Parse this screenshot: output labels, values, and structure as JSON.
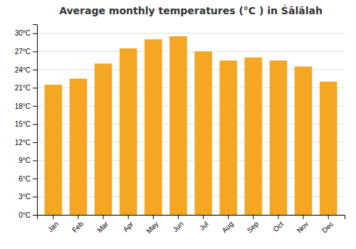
{
  "chart_data": {
    "type": "bar",
    "title": "Average monthly temperatures (°C ) in Śālālah",
    "categories": [
      "Jan",
      "Feb",
      "Mar",
      "Apr",
      "May",
      "Jun",
      "Jul",
      "Aug",
      "Sep",
      "Oct",
      "Nov",
      "Dec"
    ],
    "values": [
      21.5,
      22.5,
      25.0,
      27.5,
      29.0,
      29.5,
      27.0,
      25.5,
      26.0,
      25.5,
      24.5,
      22.0
    ],
    "color": "#F5A623",
    "ylim": [
      0,
      31.5
    ],
    "yticks": [
      {
        "value": 0,
        "label": "0°C"
      },
      {
        "value": 3,
        "label": "3°C"
      },
      {
        "value": 6,
        "label": "6°C"
      },
      {
        "value": 9,
        "label": "9°C"
      },
      {
        "value": 12,
        "label": "12°C"
      },
      {
        "value": 15,
        "label": "15°C"
      },
      {
        "value": 18,
        "label": "18°C"
      },
      {
        "value": 21,
        "label": "21°C"
      },
      {
        "value": 24,
        "label": "24°C"
      },
      {
        "value": 27,
        "label": "27°C"
      },
      {
        "value": 30,
        "label": "30°C"
      }
    ],
    "grid": true
  }
}
